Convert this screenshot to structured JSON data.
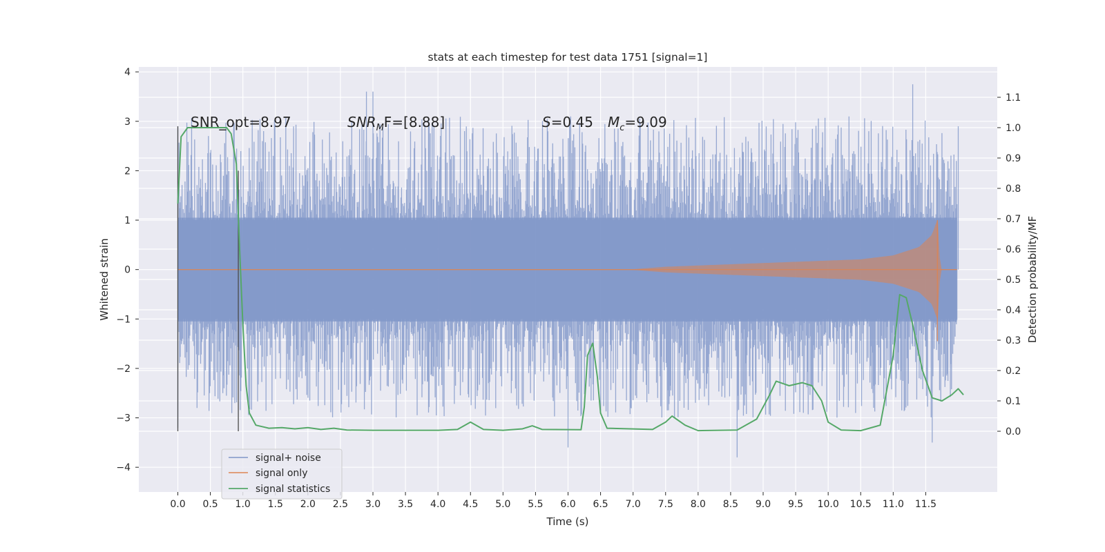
{
  "chart_data": {
    "type": "line",
    "title": "stats at each timestep for test data 1751 [signal=1]",
    "xlabel": "Time (s)",
    "ylabel_left": "Whitened strain",
    "ylabel_right": "Detection probability/MF",
    "xlim": [
      -0.6,
      12.6
    ],
    "ylim_left": [
      -4.5,
      4.1
    ],
    "ylim_right": [
      -0.2,
      1.2
    ],
    "xticks": [
      "0.0",
      "0.5",
      "1.0",
      "1.5",
      "2.0",
      "2.5",
      "3.0",
      "3.5",
      "4.0",
      "4.5",
      "5.0",
      "5.5",
      "6.0",
      "6.5",
      "7.0",
      "7.5",
      "8.0",
      "8.5",
      "9.0",
      "9.5",
      "10.0",
      "10.5",
      "11.0",
      "11.5"
    ],
    "yticks_left": [
      "4",
      "3",
      "2",
      "1",
      "0",
      "−1",
      "−2",
      "−3",
      "−4"
    ],
    "yticks_right": [
      "1.1",
      "1.0",
      "0.9",
      "0.8",
      "0.7",
      "0.6",
      "0.5",
      "0.4",
      "0.3",
      "0.2",
      "0.1",
      "0.0"
    ],
    "grid": true,
    "legend_position": "lower-left",
    "annotations": {
      "snr_opt": "SNR_opt=8.97",
      "snr_mf_sym": "SNR",
      "snr_mf_sub": "M",
      "snr_mf_rest": "F=[8.88]",
      "s_sym": "S",
      "s_rest": "=0.45",
      "mc_sym": "M",
      "mc_sub": "c",
      "mc_rest": "=9.09"
    },
    "series": [
      {
        "name": "signal+ noise",
        "color": "#7f96c8",
        "t_start": 0.0,
        "t_end": 11.98,
        "amplitude_note": "noise band roughly ±1.6 with spikes to about ±3.6",
        "spike_max": [
          [
            0.0,
            2.9
          ],
          [
            2.9,
            3.6
          ],
          [
            3.0,
            3.6
          ],
          [
            11.3,
            3.75
          ],
          [
            12.0,
            2.9
          ]
        ],
        "spike_min": [
          [
            0.0,
            -3.2
          ],
          [
            6.0,
            -3.6
          ],
          [
            8.6,
            -3.8
          ],
          [
            11.6,
            -3.5
          ]
        ]
      },
      {
        "name": "signal only",
        "color": "#dd8452",
        "envelope": [
          [
            0.0,
            0.0
          ],
          [
            7.0,
            0.0
          ],
          [
            7.5,
            0.05
          ],
          [
            8.5,
            0.1
          ],
          [
            9.5,
            0.15
          ],
          [
            10.5,
            0.2
          ],
          [
            11.0,
            0.28
          ],
          [
            11.4,
            0.45
          ],
          [
            11.6,
            0.7
          ],
          [
            11.68,
            1.0
          ],
          [
            11.72,
            0.0
          ],
          [
            12.0,
            0.0
          ]
        ],
        "merger_min": [
          11.68,
          -1.45
        ]
      },
      {
        "name": "signal statistics",
        "color": "#55a868",
        "points": [
          [
            0.0,
            0.75
          ],
          [
            0.05,
            0.97
          ],
          [
            0.15,
            1.0
          ],
          [
            0.5,
            1.0
          ],
          [
            0.75,
            1.0
          ],
          [
            0.82,
            0.98
          ],
          [
            0.9,
            0.88
          ],
          [
            0.95,
            0.6
          ],
          [
            1.0,
            0.35
          ],
          [
            1.05,
            0.15
          ],
          [
            1.1,
            0.06
          ],
          [
            1.2,
            0.02
          ],
          [
            1.4,
            0.01
          ],
          [
            1.6,
            0.012
          ],
          [
            1.8,
            0.008
          ],
          [
            2.0,
            0.012
          ],
          [
            2.2,
            0.006
          ],
          [
            2.4,
            0.01
          ],
          [
            2.6,
            0.004
          ],
          [
            3.0,
            0.003
          ],
          [
            4.0,
            0.003
          ],
          [
            4.3,
            0.006
          ],
          [
            4.5,
            0.03
          ],
          [
            4.7,
            0.006
          ],
          [
            5.0,
            0.003
          ],
          [
            5.3,
            0.008
          ],
          [
            5.45,
            0.018
          ],
          [
            5.6,
            0.006
          ],
          [
            6.2,
            0.005
          ],
          [
            6.25,
            0.08
          ],
          [
            6.3,
            0.25
          ],
          [
            6.38,
            0.29
          ],
          [
            6.45,
            0.18
          ],
          [
            6.5,
            0.06
          ],
          [
            6.6,
            0.01
          ],
          [
            7.3,
            0.006
          ],
          [
            7.5,
            0.03
          ],
          [
            7.6,
            0.05
          ],
          [
            7.8,
            0.02
          ],
          [
            8.0,
            0.002
          ],
          [
            8.6,
            0.004
          ],
          [
            8.9,
            0.04
          ],
          [
            9.1,
            0.12
          ],
          [
            9.2,
            0.165
          ],
          [
            9.4,
            0.15
          ],
          [
            9.6,
            0.16
          ],
          [
            9.75,
            0.15
          ],
          [
            9.9,
            0.1
          ],
          [
            10.0,
            0.03
          ],
          [
            10.2,
            0.004
          ],
          [
            10.5,
            0.002
          ],
          [
            10.8,
            0.02
          ],
          [
            11.0,
            0.25
          ],
          [
            11.1,
            0.45
          ],
          [
            11.2,
            0.44
          ],
          [
            11.3,
            0.35
          ],
          [
            11.45,
            0.2
          ],
          [
            11.6,
            0.11
          ],
          [
            11.75,
            0.1
          ],
          [
            11.9,
            0.12
          ],
          [
            12.0,
            0.14
          ],
          [
            12.08,
            0.12
          ]
        ]
      }
    ],
    "vertical_markers": [
      0.0,
      0.93
    ]
  }
}
